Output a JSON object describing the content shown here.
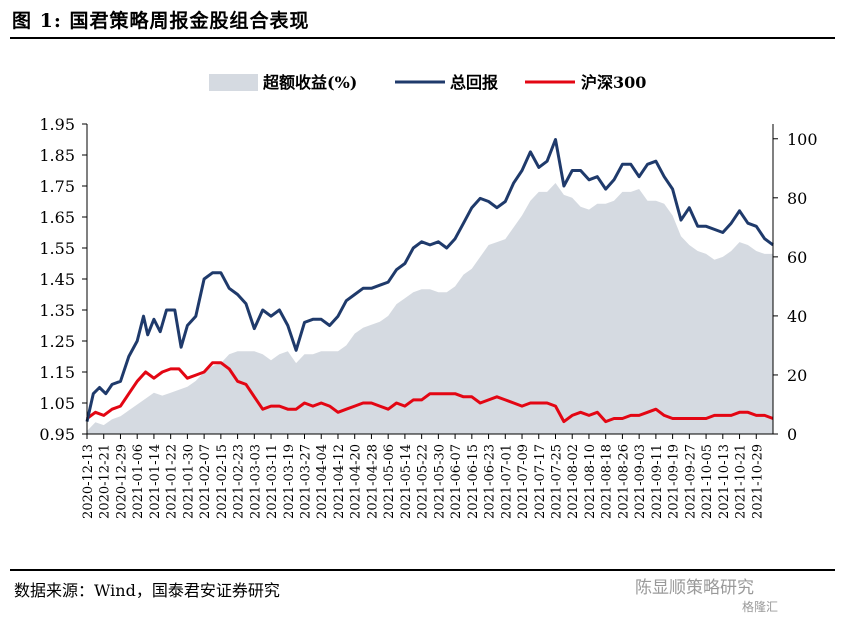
{
  "figure": {
    "title": "图 1:  国君策略周报金股组合表现",
    "source": "数据来源：Wind，国泰君安证券研究",
    "watermark": "陈显顺策略研究",
    "watermark_brand": "格隆汇"
  },
  "colors": {
    "excess_fill": "#d5dae1",
    "total": "#1f3a6b",
    "hs300": "#e30613",
    "axis": "#000000"
  },
  "chart_data": {
    "type": "line",
    "legend_position": "top",
    "grid": false,
    "ylim_left": [
      0.95,
      1.95
    ],
    "ylim_right": [
      0,
      105
    ],
    "yticks_left": [
      "1.95",
      "1.85",
      "1.75",
      "1.65",
      "1.55",
      "1.45",
      "1.35",
      "1.25",
      "1.15",
      "1.05",
      "0.95"
    ],
    "yticks_right": [
      "100",
      "80",
      "60",
      "40",
      "20",
      "0"
    ],
    "x_start": "2020-12-13",
    "x_end": "2021-11-06",
    "xticks": [
      "2020-12-13",
      "2020-12-21",
      "2020-12-29",
      "2021-01-06",
      "2021-01-14",
      "2021-01-22",
      "2021-01-30",
      "2021-02-07",
      "2021-02-15",
      "2021-02-23",
      "2021-03-03",
      "2021-03-11",
      "2021-03-19",
      "2021-03-27",
      "2021-04-04",
      "2021-04-12",
      "2021-04-20",
      "2021-04-28",
      "2021-05-06",
      "2021-05-14",
      "2021-05-22",
      "2021-05-30",
      "2021-06-07",
      "2021-06-15",
      "2021-06-23",
      "2021-07-01",
      "2021-07-09",
      "2021-07-17",
      "2021-07-25",
      "2021-08-02",
      "2021-08-10",
      "2021-08-18",
      "2021-08-26",
      "2021-09-03",
      "2021-09-11",
      "2021-09-19",
      "2021-09-27",
      "2021-10-05",
      "2021-10-13",
      "2021-10-21",
      "2021-10-29"
    ],
    "series": [
      {
        "name": "超额收益(%)",
        "type": "area",
        "axis": "right",
        "points": [
          [
            "2020-12-13",
            1
          ],
          [
            "2020-12-17",
            4
          ],
          [
            "2020-12-21",
            3
          ],
          [
            "2020-12-25",
            5
          ],
          [
            "2020-12-29",
            6
          ],
          [
            "2021-01-02",
            8
          ],
          [
            "2021-01-06",
            10
          ],
          [
            "2021-01-10",
            12
          ],
          [
            "2021-01-14",
            14
          ],
          [
            "2021-01-18",
            13
          ],
          [
            "2021-01-22",
            14
          ],
          [
            "2021-01-26",
            15
          ],
          [
            "2021-01-30",
            16
          ],
          [
            "2021-02-03",
            18
          ],
          [
            "2021-02-07",
            21
          ],
          [
            "2021-02-11",
            23
          ],
          [
            "2021-02-15",
            24
          ],
          [
            "2021-02-19",
            27
          ],
          [
            "2021-02-23",
            28
          ],
          [
            "2021-02-27",
            28
          ],
          [
            "2021-03-03",
            28
          ],
          [
            "2021-03-07",
            27
          ],
          [
            "2021-03-11",
            25
          ],
          [
            "2021-03-15",
            27
          ],
          [
            "2021-03-19",
            28
          ],
          [
            "2021-03-23",
            24
          ],
          [
            "2021-03-27",
            27
          ],
          [
            "2021-03-31",
            27
          ],
          [
            "2021-04-04",
            28
          ],
          [
            "2021-04-08",
            28
          ],
          [
            "2021-04-12",
            28
          ],
          [
            "2021-04-16",
            30
          ],
          [
            "2021-04-20",
            34
          ],
          [
            "2021-04-24",
            36
          ],
          [
            "2021-04-28",
            37
          ],
          [
            "2021-05-02",
            38
          ],
          [
            "2021-05-06",
            40
          ],
          [
            "2021-05-10",
            44
          ],
          [
            "2021-05-14",
            46
          ],
          [
            "2021-05-18",
            48
          ],
          [
            "2021-05-22",
            49
          ],
          [
            "2021-05-26",
            49
          ],
          [
            "2021-05-30",
            48
          ],
          [
            "2021-06-03",
            48
          ],
          [
            "2021-06-07",
            50
          ],
          [
            "2021-06-11",
            54
          ],
          [
            "2021-06-15",
            56
          ],
          [
            "2021-06-19",
            60
          ],
          [
            "2021-06-23",
            64
          ],
          [
            "2021-06-27",
            65
          ],
          [
            "2021-07-01",
            66
          ],
          [
            "2021-07-05",
            70
          ],
          [
            "2021-07-09",
            74
          ],
          [
            "2021-07-13",
            79
          ],
          [
            "2021-07-17",
            82
          ],
          [
            "2021-07-21",
            82
          ],
          [
            "2021-07-25",
            85
          ],
          [
            "2021-07-29",
            81
          ],
          [
            "2021-08-02",
            80
          ],
          [
            "2021-08-06",
            77
          ],
          [
            "2021-08-10",
            76
          ],
          [
            "2021-08-14",
            78
          ],
          [
            "2021-08-18",
            78
          ],
          [
            "2021-08-22",
            79
          ],
          [
            "2021-08-26",
            82
          ],
          [
            "2021-08-30",
            82
          ],
          [
            "2021-09-03",
            83
          ],
          [
            "2021-09-07",
            79
          ],
          [
            "2021-09-11",
            79
          ],
          [
            "2021-09-15",
            78
          ],
          [
            "2021-09-19",
            74
          ],
          [
            "2021-09-23",
            67
          ],
          [
            "2021-09-27",
            64
          ],
          [
            "2021-10-01",
            62
          ],
          [
            "2021-10-05",
            61
          ],
          [
            "2021-10-09",
            59
          ],
          [
            "2021-10-13",
            60
          ],
          [
            "2021-10-17",
            62
          ],
          [
            "2021-10-21",
            65
          ],
          [
            "2021-10-25",
            64
          ],
          [
            "2021-10-29",
            62
          ],
          [
            "2021-11-02",
            61
          ],
          [
            "2021-11-06",
            61
          ]
        ]
      },
      {
        "name": "总回报",
        "type": "line",
        "axis": "left",
        "points": [
          [
            "2020-12-13",
            0.99
          ],
          [
            "2020-12-16",
            1.08
          ],
          [
            "2020-12-19",
            1.1
          ],
          [
            "2020-12-22",
            1.08
          ],
          [
            "2020-12-25",
            1.11
          ],
          [
            "2020-12-29",
            1.12
          ],
          [
            "2021-01-02",
            1.2
          ],
          [
            "2021-01-06",
            1.25
          ],
          [
            "2021-01-09",
            1.33
          ],
          [
            "2021-01-11",
            1.27
          ],
          [
            "2021-01-14",
            1.32
          ],
          [
            "2021-01-17",
            1.28
          ],
          [
            "2021-01-20",
            1.35
          ],
          [
            "2021-01-24",
            1.35
          ],
          [
            "2021-01-27",
            1.23
          ],
          [
            "2021-01-30",
            1.3
          ],
          [
            "2021-02-03",
            1.33
          ],
          [
            "2021-02-07",
            1.45
          ],
          [
            "2021-02-11",
            1.47
          ],
          [
            "2021-02-15",
            1.47
          ],
          [
            "2021-02-19",
            1.42
          ],
          [
            "2021-02-23",
            1.4
          ],
          [
            "2021-02-27",
            1.37
          ],
          [
            "2021-03-03",
            1.29
          ],
          [
            "2021-03-07",
            1.35
          ],
          [
            "2021-03-11",
            1.33
          ],
          [
            "2021-03-15",
            1.35
          ],
          [
            "2021-03-19",
            1.3
          ],
          [
            "2021-03-23",
            1.22
          ],
          [
            "2021-03-27",
            1.31
          ],
          [
            "2021-03-31",
            1.32
          ],
          [
            "2021-04-04",
            1.32
          ],
          [
            "2021-04-08",
            1.3
          ],
          [
            "2021-04-12",
            1.33
          ],
          [
            "2021-04-16",
            1.38
          ],
          [
            "2021-04-20",
            1.4
          ],
          [
            "2021-04-24",
            1.42
          ],
          [
            "2021-04-28",
            1.42
          ],
          [
            "2021-05-02",
            1.43
          ],
          [
            "2021-05-06",
            1.44
          ],
          [
            "2021-05-10",
            1.48
          ],
          [
            "2021-05-14",
            1.5
          ],
          [
            "2021-05-18",
            1.55
          ],
          [
            "2021-05-22",
            1.57
          ],
          [
            "2021-05-26",
            1.56
          ],
          [
            "2021-05-30",
            1.57
          ],
          [
            "2021-06-03",
            1.55
          ],
          [
            "2021-06-07",
            1.58
          ],
          [
            "2021-06-11",
            1.63
          ],
          [
            "2021-06-15",
            1.68
          ],
          [
            "2021-06-19",
            1.71
          ],
          [
            "2021-06-23",
            1.7
          ],
          [
            "2021-06-27",
            1.68
          ],
          [
            "2021-07-01",
            1.7
          ],
          [
            "2021-07-05",
            1.76
          ],
          [
            "2021-07-09",
            1.8
          ],
          [
            "2021-07-13",
            1.86
          ],
          [
            "2021-07-17",
            1.81
          ],
          [
            "2021-07-21",
            1.83
          ],
          [
            "2021-07-25",
            1.9
          ],
          [
            "2021-07-29",
            1.75
          ],
          [
            "2021-08-02",
            1.8
          ],
          [
            "2021-08-06",
            1.8
          ],
          [
            "2021-08-10",
            1.77
          ],
          [
            "2021-08-14",
            1.78
          ],
          [
            "2021-08-18",
            1.74
          ],
          [
            "2021-08-22",
            1.77
          ],
          [
            "2021-08-26",
            1.82
          ],
          [
            "2021-08-30",
            1.82
          ],
          [
            "2021-09-03",
            1.78
          ],
          [
            "2021-09-07",
            1.82
          ],
          [
            "2021-09-11",
            1.83
          ],
          [
            "2021-09-15",
            1.78
          ],
          [
            "2021-09-19",
            1.74
          ],
          [
            "2021-09-23",
            1.64
          ],
          [
            "2021-09-27",
            1.68
          ],
          [
            "2021-10-01",
            1.62
          ],
          [
            "2021-10-05",
            1.62
          ],
          [
            "2021-10-09",
            1.61
          ],
          [
            "2021-10-13",
            1.6
          ],
          [
            "2021-10-17",
            1.63
          ],
          [
            "2021-10-21",
            1.67
          ],
          [
            "2021-10-25",
            1.63
          ],
          [
            "2021-10-29",
            1.62
          ],
          [
            "2021-11-02",
            1.58
          ],
          [
            "2021-11-06",
            1.56
          ]
        ]
      },
      {
        "name": "沪深300",
        "type": "line",
        "axis": "left",
        "points": [
          [
            "2020-12-13",
            1.0
          ],
          [
            "2020-12-17",
            1.02
          ],
          [
            "2020-12-21",
            1.01
          ],
          [
            "2020-12-25",
            1.03
          ],
          [
            "2020-12-29",
            1.04
          ],
          [
            "2021-01-02",
            1.08
          ],
          [
            "2021-01-06",
            1.12
          ],
          [
            "2021-01-10",
            1.15
          ],
          [
            "2021-01-14",
            1.13
          ],
          [
            "2021-01-18",
            1.15
          ],
          [
            "2021-01-22",
            1.16
          ],
          [
            "2021-01-26",
            1.16
          ],
          [
            "2021-01-30",
            1.13
          ],
          [
            "2021-02-03",
            1.14
          ],
          [
            "2021-02-07",
            1.15
          ],
          [
            "2021-02-11",
            1.18
          ],
          [
            "2021-02-15",
            1.18
          ],
          [
            "2021-02-19",
            1.16
          ],
          [
            "2021-02-23",
            1.12
          ],
          [
            "2021-02-27",
            1.11
          ],
          [
            "2021-03-03",
            1.07
          ],
          [
            "2021-03-07",
            1.03
          ],
          [
            "2021-03-11",
            1.04
          ],
          [
            "2021-03-15",
            1.04
          ],
          [
            "2021-03-19",
            1.03
          ],
          [
            "2021-03-23",
            1.03
          ],
          [
            "2021-03-27",
            1.05
          ],
          [
            "2021-03-31",
            1.04
          ],
          [
            "2021-04-04",
            1.05
          ],
          [
            "2021-04-08",
            1.04
          ],
          [
            "2021-04-12",
            1.02
          ],
          [
            "2021-04-16",
            1.03
          ],
          [
            "2021-04-20",
            1.04
          ],
          [
            "2021-04-24",
            1.05
          ],
          [
            "2021-04-28",
            1.05
          ],
          [
            "2021-05-02",
            1.04
          ],
          [
            "2021-05-06",
            1.03
          ],
          [
            "2021-05-10",
            1.05
          ],
          [
            "2021-05-14",
            1.04
          ],
          [
            "2021-05-18",
            1.06
          ],
          [
            "2021-05-22",
            1.06
          ],
          [
            "2021-05-26",
            1.08
          ],
          [
            "2021-05-30",
            1.08
          ],
          [
            "2021-06-03",
            1.08
          ],
          [
            "2021-06-07",
            1.08
          ],
          [
            "2021-06-11",
            1.07
          ],
          [
            "2021-06-15",
            1.07
          ],
          [
            "2021-06-19",
            1.05
          ],
          [
            "2021-06-23",
            1.06
          ],
          [
            "2021-06-27",
            1.07
          ],
          [
            "2021-07-01",
            1.06
          ],
          [
            "2021-07-05",
            1.05
          ],
          [
            "2021-07-09",
            1.04
          ],
          [
            "2021-07-13",
            1.05
          ],
          [
            "2021-07-17",
            1.05
          ],
          [
            "2021-07-21",
            1.05
          ],
          [
            "2021-07-25",
            1.04
          ],
          [
            "2021-07-29",
            0.99
          ],
          [
            "2021-08-02",
            1.01
          ],
          [
            "2021-08-06",
            1.02
          ],
          [
            "2021-08-10",
            1.01
          ],
          [
            "2021-08-14",
            1.02
          ],
          [
            "2021-08-18",
            0.99
          ],
          [
            "2021-08-22",
            1.0
          ],
          [
            "2021-08-26",
            1.0
          ],
          [
            "2021-08-30",
            1.01
          ],
          [
            "2021-09-03",
            1.01
          ],
          [
            "2021-09-07",
            1.02
          ],
          [
            "2021-09-11",
            1.03
          ],
          [
            "2021-09-15",
            1.01
          ],
          [
            "2021-09-19",
            1.0
          ],
          [
            "2021-09-23",
            1.0
          ],
          [
            "2021-09-27",
            1.0
          ],
          [
            "2021-10-01",
            1.0
          ],
          [
            "2021-10-05",
            1.0
          ],
          [
            "2021-10-09",
            1.01
          ],
          [
            "2021-10-13",
            1.01
          ],
          [
            "2021-10-17",
            1.01
          ],
          [
            "2021-10-21",
            1.02
          ],
          [
            "2021-10-25",
            1.02
          ],
          [
            "2021-10-29",
            1.01
          ],
          [
            "2021-11-02",
            1.01
          ],
          [
            "2021-11-06",
            1.0
          ]
        ]
      }
    ]
  }
}
